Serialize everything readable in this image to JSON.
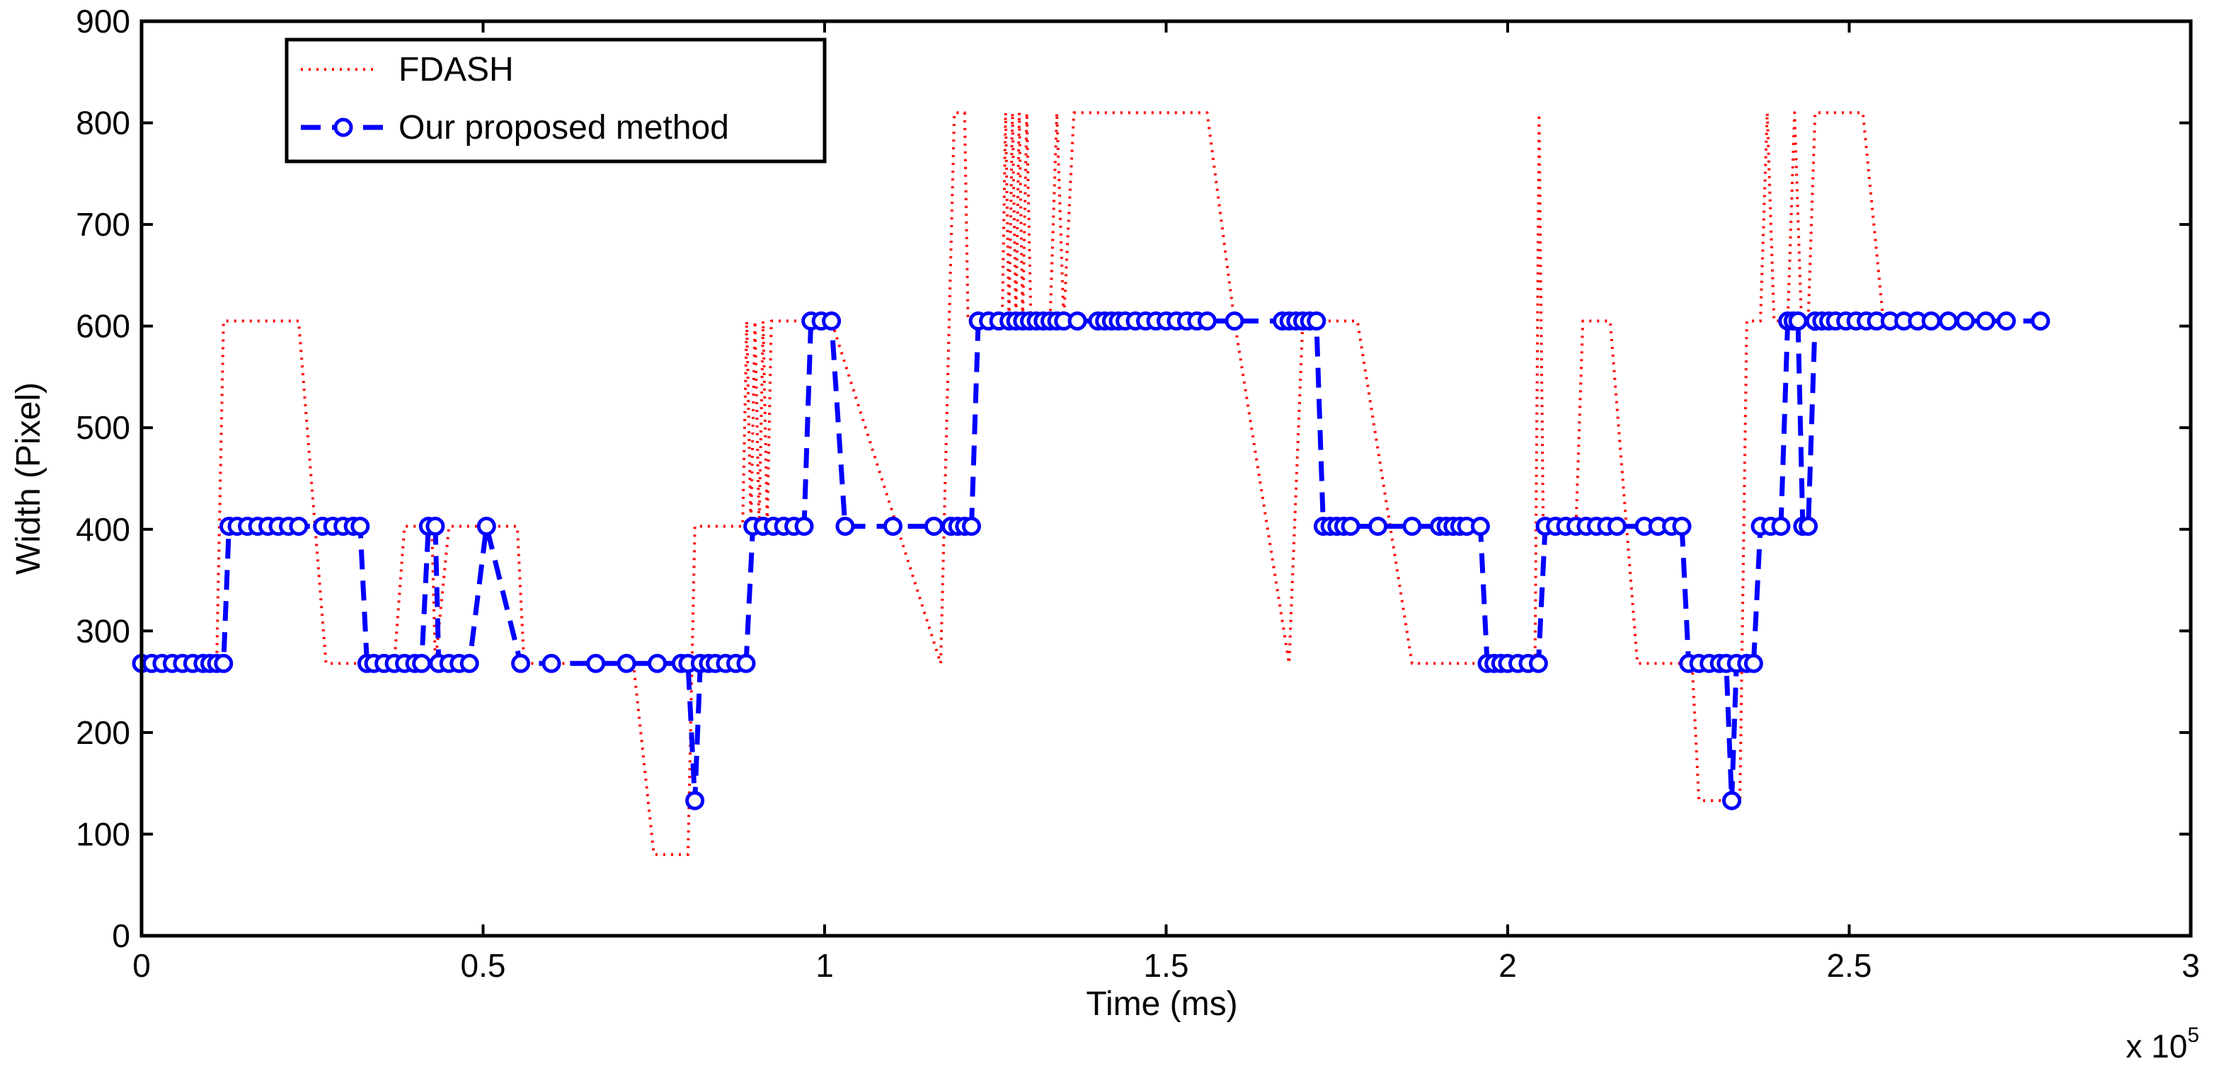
{
  "chart_data": {
    "type": "line",
    "title": "",
    "xlabel": "Time (ms)",
    "ylabel": "Width (Pixel)",
    "x_multiplier_label": "x 10",
    "x_multiplier_exp": "5",
    "xlim": [
      0,
      300000
    ],
    "ylim": [
      0,
      900
    ],
    "xticks": [
      0,
      50000,
      100000,
      150000,
      200000,
      250000,
      300000
    ],
    "xtick_labels": [
      "0",
      "0.5",
      "1",
      "1.5",
      "2",
      "2.5",
      "3"
    ],
    "yticks": [
      0,
      100,
      200,
      300,
      400,
      500,
      600,
      700,
      800,
      900
    ],
    "ytick_labels": [
      "0",
      "100",
      "200",
      "300",
      "400",
      "500",
      "600",
      "700",
      "800",
      "900"
    ],
    "grid": false,
    "legend_position": "top-left",
    "series": [
      {
        "name": "FDASH",
        "color": "#ff0000",
        "style": "dotted",
        "points": [
          [
            0,
            268
          ],
          [
            11000,
            268
          ],
          [
            12000,
            605
          ],
          [
            23000,
            605
          ],
          [
            27000,
            268
          ],
          [
            32000,
            268
          ],
          [
            33500,
            268
          ],
          [
            37000,
            268
          ],
          [
            38500,
            403
          ],
          [
            42500,
            403
          ],
          [
            43000,
            268
          ],
          [
            45000,
            403
          ],
          [
            51000,
            403
          ],
          [
            55000,
            403
          ],
          [
            56000,
            268
          ],
          [
            72000,
            268
          ],
          [
            75000,
            80
          ],
          [
            80000,
            80
          ],
          [
            81000,
            403
          ],
          [
            88000,
            403
          ],
          [
            88600,
            605
          ],
          [
            89200,
            403
          ],
          [
            89800,
            605
          ],
          [
            90400,
            403
          ],
          [
            91000,
            605
          ],
          [
            91600,
            403
          ],
          [
            92200,
            605
          ],
          [
            93000,
            605
          ],
          [
            99000,
            605
          ],
          [
            101000,
            605
          ],
          [
            117000,
            268
          ],
          [
            119000,
            810
          ],
          [
            120500,
            810
          ],
          [
            121000,
            605
          ],
          [
            126000,
            605
          ],
          [
            126500,
            810
          ],
          [
            127000,
            605
          ],
          [
            127500,
            810
          ],
          [
            128000,
            605
          ],
          [
            128500,
            810
          ],
          [
            129000,
            605
          ],
          [
            129600,
            810
          ],
          [
            130200,
            605
          ],
          [
            131000,
            605
          ],
          [
            133000,
            605
          ],
          [
            134000,
            810
          ],
          [
            135000,
            605
          ],
          [
            136500,
            810
          ],
          [
            156000,
            810
          ],
          [
            160000,
            605
          ],
          [
            168000,
            268
          ],
          [
            170000,
            605
          ],
          [
            178000,
            605
          ],
          [
            186000,
            268
          ],
          [
            204000,
            268
          ],
          [
            204600,
            805
          ],
          [
            205200,
            403
          ],
          [
            210000,
            403
          ],
          [
            211000,
            605
          ],
          [
            215000,
            605
          ],
          [
            219000,
            268
          ],
          [
            223000,
            268
          ],
          [
            227000,
            268
          ],
          [
            228000,
            133
          ],
          [
            234000,
            133
          ],
          [
            235000,
            605
          ],
          [
            237000,
            605
          ],
          [
            238000,
            810
          ],
          [
            239000,
            605
          ],
          [
            241000,
            605
          ],
          [
            242000,
            810
          ],
          [
            243000,
            605
          ],
          [
            244000,
            605
          ],
          [
            245000,
            810
          ],
          [
            252000,
            810
          ],
          [
            255000,
            605
          ],
          [
            268000,
            605
          ]
        ]
      },
      {
        "name": "Our proposed method",
        "color": "#0000ff",
        "style": "dashed",
        "marker": "circle",
        "points": [
          [
            0,
            268
          ],
          [
            1500,
            268
          ],
          [
            3000,
            268
          ],
          [
            4500,
            268
          ],
          [
            6000,
            268
          ],
          [
            7500,
            268
          ],
          [
            9000,
            268
          ],
          [
            10000,
            268
          ],
          [
            11000,
            268
          ],
          [
            12000,
            268
          ],
          [
            12800,
            403
          ],
          [
            14000,
            403
          ],
          [
            15500,
            403
          ],
          [
            17000,
            403
          ],
          [
            18500,
            403
          ],
          [
            20000,
            403
          ],
          [
            21500,
            403
          ],
          [
            23000,
            403
          ],
          [
            26500,
            403
          ],
          [
            28000,
            403
          ],
          [
            29500,
            403
          ],
          [
            31000,
            403
          ],
          [
            32000,
            403
          ],
          [
            33000,
            268
          ],
          [
            34000,
            268
          ],
          [
            35500,
            268
          ],
          [
            37000,
            268
          ],
          [
            38500,
            268
          ],
          [
            40000,
            268
          ],
          [
            41000,
            268
          ],
          [
            42000,
            403
          ],
          [
            43000,
            403
          ],
          [
            43500,
            268
          ],
          [
            45000,
            268
          ],
          [
            46500,
            268
          ],
          [
            48000,
            268
          ],
          [
            50500,
            403
          ],
          [
            55500,
            268
          ],
          [
            60000,
            268
          ],
          [
            66500,
            268
          ],
          [
            71000,
            268
          ],
          [
            75500,
            268
          ],
          [
            79000,
            268
          ],
          [
            80000,
            268
          ],
          [
            81000,
            133
          ],
          [
            81800,
            268
          ],
          [
            83000,
            268
          ],
          [
            84000,
            268
          ],
          [
            85500,
            268
          ],
          [
            87000,
            268
          ],
          [
            88500,
            268
          ],
          [
            89500,
            403
          ],
          [
            91000,
            403
          ],
          [
            92500,
            403
          ],
          [
            94000,
            403
          ],
          [
            95500,
            403
          ],
          [
            97000,
            403
          ],
          [
            98000,
            605
          ],
          [
            99500,
            605
          ],
          [
            101000,
            605
          ],
          [
            103000,
            403
          ],
          [
            110000,
            403
          ],
          [
            116000,
            403
          ],
          [
            118500,
            403
          ],
          [
            119500,
            403
          ],
          [
            120500,
            403
          ],
          [
            121500,
            403
          ],
          [
            122500,
            605
          ],
          [
            124000,
            605
          ],
          [
            125500,
            605
          ],
          [
            127000,
            605
          ],
          [
            128000,
            605
          ],
          [
            129000,
            605
          ],
          [
            130000,
            605
          ],
          [
            131000,
            605
          ],
          [
            132000,
            605
          ],
          [
            133000,
            605
          ],
          [
            134000,
            605
          ],
          [
            135000,
            605
          ],
          [
            137000,
            605
          ],
          [
            140000,
            605
          ],
          [
            141000,
            605
          ],
          [
            142000,
            605
          ],
          [
            143000,
            605
          ],
          [
            144000,
            605
          ],
          [
            145500,
            605
          ],
          [
            147000,
            605
          ],
          [
            148500,
            605
          ],
          [
            150000,
            605
          ],
          [
            151500,
            605
          ],
          [
            153000,
            605
          ],
          [
            154500,
            605
          ],
          [
            156000,
            605
          ],
          [
            160000,
            605
          ],
          [
            167000,
            605
          ],
          [
            168000,
            605
          ],
          [
            169000,
            605
          ],
          [
            170000,
            605
          ],
          [
            171000,
            605
          ],
          [
            172000,
            605
          ],
          [
            173000,
            403
          ],
          [
            174000,
            403
          ],
          [
            175000,
            403
          ],
          [
            176000,
            403
          ],
          [
            177000,
            403
          ],
          [
            181000,
            403
          ],
          [
            186000,
            403
          ],
          [
            190000,
            403
          ],
          [
            191000,
            403
          ],
          [
            192000,
            403
          ],
          [
            193000,
            403
          ],
          [
            194000,
            403
          ],
          [
            196000,
            403
          ],
          [
            197000,
            268
          ],
          [
            198000,
            268
          ],
          [
            199000,
            268
          ],
          [
            200000,
            268
          ],
          [
            201500,
            268
          ],
          [
            203000,
            268
          ],
          [
            204500,
            268
          ],
          [
            205500,
            403
          ],
          [
            207000,
            403
          ],
          [
            208500,
            403
          ],
          [
            210000,
            403
          ],
          [
            211500,
            403
          ],
          [
            213000,
            403
          ],
          [
            214500,
            403
          ],
          [
            216000,
            403
          ],
          [
            220000,
            403
          ],
          [
            222000,
            403
          ],
          [
            224000,
            403
          ],
          [
            225500,
            403
          ],
          [
            226500,
            268
          ],
          [
            228000,
            268
          ],
          [
            229500,
            268
          ],
          [
            231000,
            268
          ],
          [
            232000,
            268
          ],
          [
            232800,
            133
          ],
          [
            233500,
            268
          ],
          [
            235000,
            268
          ],
          [
            236000,
            268
          ],
          [
            237000,
            403
          ],
          [
            238500,
            403
          ],
          [
            240000,
            403
          ],
          [
            241000,
            605
          ],
          [
            241800,
            605
          ],
          [
            242500,
            605
          ],
          [
            243200,
            403
          ],
          [
            244000,
            403
          ],
          [
            245000,
            605
          ],
          [
            246000,
            605
          ],
          [
            247000,
            605
          ],
          [
            248000,
            605
          ],
          [
            249500,
            605
          ],
          [
            251000,
            605
          ],
          [
            252500,
            605
          ],
          [
            254000,
            605
          ],
          [
            256000,
            605
          ],
          [
            258000,
            605
          ],
          [
            260000,
            605
          ],
          [
            262000,
            605
          ],
          [
            264500,
            605
          ],
          [
            267000,
            605
          ],
          [
            270000,
            605
          ],
          [
            273000,
            605
          ],
          [
            278000,
            605
          ]
        ]
      }
    ]
  }
}
